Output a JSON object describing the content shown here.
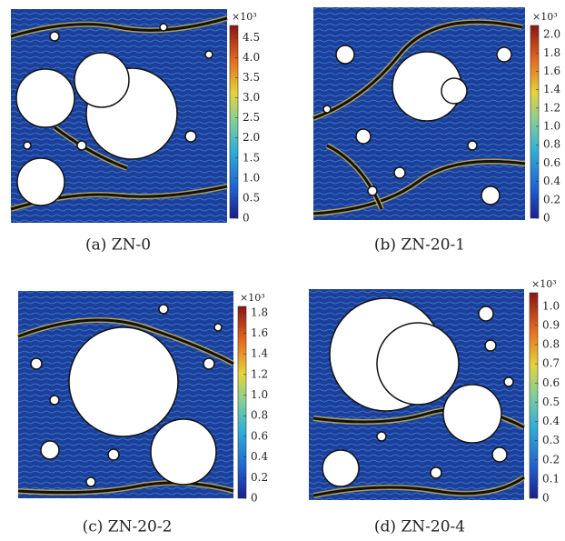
{
  "panels": [
    {
      "caption": "(a) ZN-0",
      "colorbar": {
        "multiplier": "×10³",
        "lim": [
          0,
          4.8
        ],
        "ticks": [
          0,
          0.5,
          {
            "value": 1,
            "label": "1.0"
          },
          1.5,
          {
            "value": 2,
            "label": "2.0"
          },
          2.5,
          {
            "value": 3,
            "label": "3.0"
          },
          3.5,
          {
            "value": 4,
            "label": "4.0"
          },
          4.5
        ]
      }
    },
    {
      "caption": "(b) ZN-20-1",
      "colorbar": {
        "multiplier": "×10³",
        "lim": [
          0,
          2.1
        ],
        "ticks": [
          0,
          0.2,
          0.4,
          0.6,
          0.8,
          {
            "value": 1,
            "label": "1.0"
          },
          1.2,
          1.4,
          1.6,
          1.8,
          {
            "value": 2,
            "label": "2.0"
          }
        ]
      }
    },
    {
      "caption": "(c) ZN-20-2",
      "colorbar": {
        "multiplier": "×10³",
        "lim": [
          0,
          1.86
        ],
        "ticks": [
          0,
          0.2,
          0.4,
          0.6,
          0.8,
          {
            "value": 1,
            "label": "1.0"
          },
          1.2,
          1.4,
          1.6,
          1.8
        ]
      }
    },
    {
      "caption": "(d) ZN-20-4",
      "colorbar": {
        "multiplier": "×10³",
        "lim": [
          0,
          1.07
        ],
        "ticks": [
          0,
          0.1,
          0.2,
          0.3,
          0.4,
          0.5,
          0.6,
          0.7,
          0.8,
          0.9,
          {
            "value": 1,
            "label": "1.0"
          }
        ]
      }
    }
  ]
}
